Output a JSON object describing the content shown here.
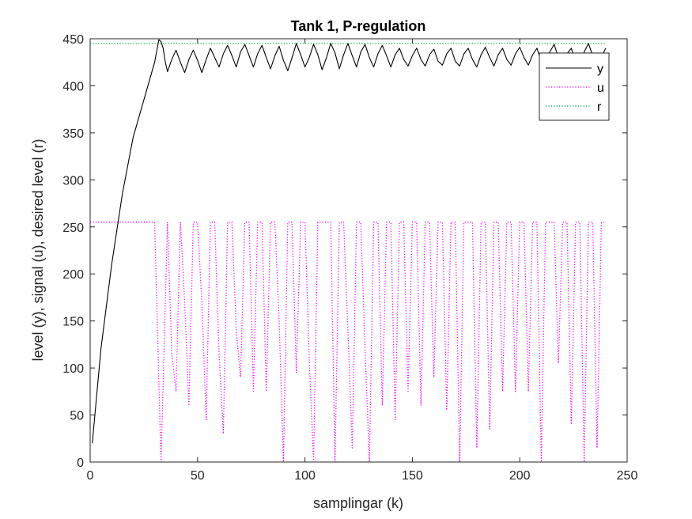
{
  "chart_data": {
    "type": "line",
    "title": "Tank 1, P-regulation",
    "xlabel": "samplingar (k)",
    "ylabel": "level (y), signal (u), desired level (r)",
    "xlim": [
      0,
      250
    ],
    "ylim": [
      0,
      450
    ],
    "xticks": [
      0,
      50,
      100,
      150,
      200,
      250
    ],
    "yticks": [
      0,
      50,
      100,
      150,
      200,
      250,
      300,
      350,
      400,
      450
    ],
    "grid": false,
    "legend_position": "top-right",
    "series": [
      {
        "name": "y",
        "color": "#000000",
        "style": "solid",
        "x": [
          1,
          5,
          10,
          15,
          20,
          25,
          30,
          32,
          33,
          34,
          35,
          36,
          38,
          40,
          42,
          44,
          46,
          48,
          50,
          52,
          54,
          56,
          58,
          60,
          62,
          64,
          66,
          68,
          70,
          72,
          74,
          76,
          78,
          80,
          82,
          84,
          86,
          88,
          90,
          92,
          94,
          96,
          98,
          100,
          102,
          104,
          106,
          108,
          110,
          112,
          114,
          116,
          118,
          120,
          122,
          124,
          126,
          128,
          130,
          132,
          134,
          136,
          138,
          140,
          142,
          144,
          146,
          148,
          150,
          152,
          154,
          156,
          158,
          160,
          162,
          164,
          166,
          168,
          170,
          172,
          174,
          176,
          178,
          180,
          182,
          184,
          186,
          188,
          190,
          192,
          194,
          196,
          198,
          200,
          202,
          204,
          206,
          208,
          210,
          212,
          214,
          216,
          218,
          220,
          222,
          224,
          226,
          228,
          230,
          232,
          234,
          236,
          238,
          240
        ],
        "y": [
          20,
          120,
          210,
          285,
          345,
          385,
          425,
          449,
          447,
          440,
          425,
          415,
          428,
          438,
          425,
          414,
          428,
          438,
          427,
          414,
          428,
          440,
          430,
          420,
          434,
          443,
          432,
          420,
          436,
          444,
          432,
          420,
          434,
          443,
          430,
          418,
          432,
          442,
          427,
          416,
          430,
          445,
          433,
          420,
          430,
          444,
          433,
          417,
          430,
          445,
          435,
          418,
          433,
          445,
          432,
          420,
          436,
          444,
          430,
          420,
          434,
          443,
          432,
          420,
          433,
          440,
          428,
          421,
          432,
          440,
          428,
          421,
          433,
          439,
          426,
          422,
          434,
          440,
          426,
          421,
          434,
          440,
          428,
          420,
          433,
          441,
          430,
          421,
          433,
          440,
          428,
          422,
          434,
          441,
          430,
          422,
          433,
          440,
          426,
          422,
          436,
          444,
          430,
          420,
          434,
          440,
          424,
          420,
          436,
          445,
          432,
          420,
          430,
          440
        ]
      },
      {
        "name": "u",
        "color": "#ff00ff",
        "style": "dotted",
        "x": [
          0,
          29,
          30,
          33,
          36,
          38,
          40,
          42,
          44,
          46,
          48,
          50,
          52,
          54,
          56,
          58,
          60,
          62,
          64,
          66,
          68,
          70,
          72,
          74,
          76,
          78,
          80,
          82,
          84,
          86,
          88,
          90,
          92,
          94,
          96,
          98,
          100,
          102,
          104,
          106,
          108,
          110,
          112,
          114,
          116,
          118,
          120,
          122,
          124,
          126,
          128,
          130,
          132,
          134,
          136,
          138,
          140,
          142,
          144,
          146,
          148,
          150,
          152,
          154,
          156,
          158,
          160,
          162,
          164,
          166,
          168,
          170,
          172,
          174,
          176,
          178,
          180,
          182,
          184,
          186,
          188,
          190,
          192,
          194,
          196,
          198,
          200,
          202,
          204,
          206,
          208,
          210,
          212,
          214,
          216,
          218,
          220,
          222,
          224,
          226,
          228,
          230,
          232,
          234,
          236,
          238,
          240
        ],
        "y": [
          255,
          255,
          255,
          0,
          255,
          115,
          75,
          255,
          170,
          60,
          255,
          255,
          170,
          45,
          255,
          255,
          115,
          30,
          255,
          255,
          140,
          90,
          255,
          255,
          75,
          255,
          255,
          75,
          255,
          255,
          150,
          0,
          255,
          255,
          95,
          255,
          255,
          110,
          0,
          255,
          255,
          255,
          255,
          0,
          255,
          255,
          140,
          15,
          255,
          255,
          120,
          0,
          255,
          255,
          60,
          255,
          255,
          45,
          255,
          255,
          75,
          255,
          255,
          60,
          255,
          255,
          90,
          255,
          255,
          55,
          255,
          255,
          0,
          255,
          255,
          255,
          15,
          255,
          255,
          35,
          255,
          255,
          75,
          255,
          255,
          75,
          255,
          255,
          75,
          255,
          255,
          0,
          255,
          255,
          255,
          105,
          255,
          255,
          40,
          255,
          255,
          0,
          255,
          255,
          15,
          255,
          255
        ]
      },
      {
        "name": "r",
        "color": "#00b050",
        "style": "dotted",
        "x": [
          0,
          240
        ],
        "y": [
          445,
          445
        ]
      }
    ]
  }
}
